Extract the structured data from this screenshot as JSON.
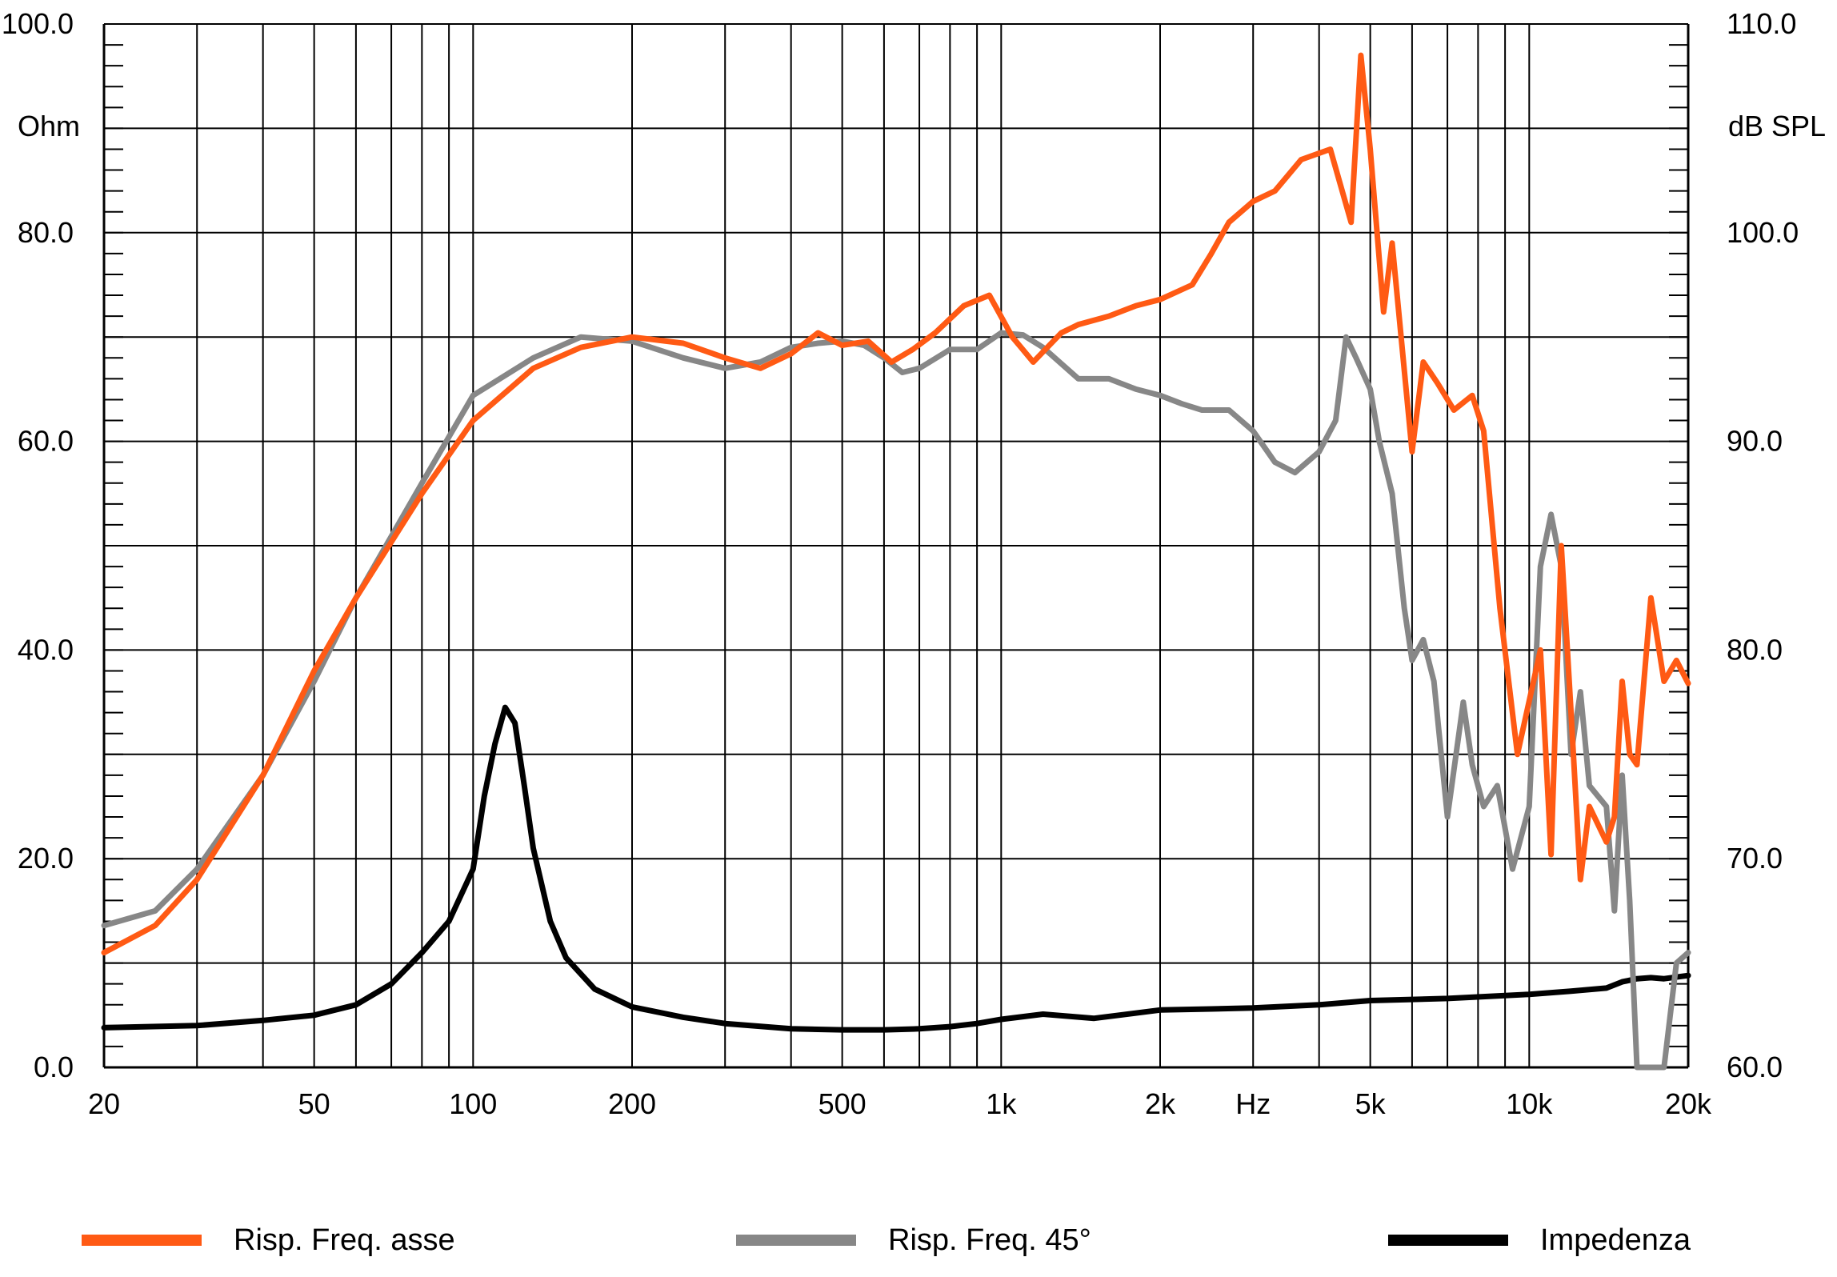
{
  "chart_data": {
    "type": "line",
    "x_scale": "log",
    "xlim": [
      20,
      20000
    ],
    "x_ticks": [
      20,
      50,
      100,
      200,
      500,
      1000,
      2000,
      3000,
      5000,
      10000,
      20000
    ],
    "x_tick_labels": [
      "20",
      "50",
      "100",
      "200",
      "500",
      "1k",
      "2k",
      "Hz",
      "5k",
      "10k",
      "20k"
    ],
    "y_left": {
      "label": "Ohm",
      "ylim": [
        0,
        100
      ],
      "ticks": [
        0,
        20,
        40,
        60,
        80,
        100
      ],
      "tick_labels": [
        "0.0",
        "20.0",
        "40.0",
        "60.0",
        "80.0",
        "100.0"
      ]
    },
    "y_right": {
      "label": "dB SPL",
      "ylim": [
        60,
        110
      ],
      "ticks": [
        60,
        70,
        80,
        90,
        100,
        110
      ],
      "tick_labels": [
        "60.0",
        "70.0",
        "80.0",
        "90.0",
        "100.0",
        "110.0"
      ]
    },
    "grid": true,
    "legend_position": "bottom",
    "series": [
      {
        "name": "Risp. Freq. asse",
        "color": "#ff5a14",
        "axis": "right",
        "x": [
          20,
          25,
          30,
          40,
          50,
          60,
          80,
          100,
          130,
          160,
          200,
          250,
          300,
          350,
          400,
          450,
          500,
          560,
          620,
          680,
          750,
          850,
          950,
          1050,
          1150,
          1300,
          1400,
          1600,
          1800,
          2000,
          2300,
          2500,
          2700,
          3000,
          3300,
          3700,
          4200,
          4600,
          4800,
          5000,
          5300,
          5500,
          6000,
          6300,
          6700,
          7200,
          7800,
          8200,
          8800,
          9500,
          10500,
          11000,
          11500,
          12000,
          12500,
          13000,
          14000,
          14500,
          15000,
          15500,
          16000,
          17000,
          18000,
          19000,
          20000
        ],
        "y": [
          65.5,
          66.8,
          69,
          74,
          79,
          82.5,
          87.5,
          91,
          93.5,
          94.5,
          95,
          94.7,
          94,
          93.5,
          94.2,
          95.2,
          94.6,
          94.8,
          93.8,
          94.4,
          95.2,
          96.5,
          97,
          95,
          93.8,
          95.2,
          95.6,
          96,
          96.5,
          96.8,
          97.5,
          99,
          100.5,
          101.5,
          102,
          103.5,
          104,
          100.5,
          108.5,
          104,
          96.2,
          99.5,
          89.5,
          93.8,
          92.8,
          91.5,
          92.2,
          90.5,
          82,
          75,
          80,
          70.2,
          85,
          77,
          69,
          72.5,
          70.8,
          72,
          78.5,
          75,
          74.5,
          82.5,
          78.5,
          79.5,
          78.4
        ]
      },
      {
        "name": "Risp. Freq. 45°",
        "color": "#878787",
        "axis": "right",
        "x": [
          20,
          25,
          30,
          40,
          50,
          60,
          80,
          100,
          130,
          160,
          200,
          250,
          300,
          350,
          400,
          450,
          500,
          550,
          600,
          650,
          700,
          800,
          900,
          1000,
          1100,
          1200,
          1400,
          1600,
          1800,
          2000,
          2200,
          2400,
          2700,
          3000,
          3300,
          3600,
          4000,
          4300,
          4500,
          4700,
          5000,
          5200,
          5500,
          5800,
          6000,
          6300,
          6600,
          7000,
          7500,
          7800,
          8200,
          8700,
          9300,
          10000,
          10500,
          11000,
          11500,
          12000,
          12500,
          13000,
          14000,
          14500,
          15000,
          15500,
          16000,
          17000,
          18000,
          19000,
          20000
        ],
        "y": [
          66.8,
          67.5,
          69.5,
          74,
          78.5,
          82.5,
          88,
          92.2,
          94,
          95,
          94.8,
          94,
          93.5,
          93.8,
          94.5,
          94.7,
          94.8,
          94.6,
          94,
          93.3,
          93.5,
          94.4,
          94.4,
          95.2,
          95.1,
          94.5,
          93,
          93,
          92.5,
          92.2,
          91.8,
          91.5,
          91.5,
          90.5,
          89,
          88.5,
          89.5,
          91,
          95,
          94,
          92.5,
          90,
          87.5,
          82,
          79.5,
          80.5,
          78.5,
          72,
          77.5,
          74.5,
          72.5,
          73.5,
          69.5,
          72.5,
          84,
          86.5,
          84,
          75,
          78,
          73.5,
          72.5,
          67.5,
          74,
          68,
          60,
          60,
          60,
          65,
          65.5
        ]
      },
      {
        "name": "Impedenza",
        "color": "#000000",
        "axis": "left",
        "x": [
          20,
          30,
          40,
          50,
          60,
          70,
          80,
          90,
          100,
          105,
          110,
          115,
          120,
          125,
          130,
          140,
          150,
          170,
          200,
          250,
          300,
          400,
          500,
          600,
          700,
          800,
          900,
          1000,
          1200,
          1500,
          2000,
          2500,
          3000,
          4000,
          5000,
          7000,
          10000,
          12000,
          14000,
          15000,
          16000,
          17000,
          18000,
          20000
        ],
        "y": [
          3.8,
          4.0,
          4.5,
          5.0,
          6.0,
          8.0,
          11.0,
          14.0,
          19.0,
          26.0,
          31.0,
          34.5,
          33.0,
          27.0,
          21.0,
          14.0,
          10.5,
          7.5,
          5.8,
          4.8,
          4.2,
          3.7,
          3.6,
          3.6,
          3.7,
          3.9,
          4.2,
          4.6,
          5.1,
          4.7,
          5.5,
          5.6,
          5.7,
          6.0,
          6.4,
          6.6,
          7.0,
          7.3,
          7.6,
          8.2,
          8.5,
          8.6,
          8.5,
          8.8
        ]
      }
    ]
  },
  "legend": [
    {
      "label": "Risp. Freq. asse",
      "color": "#ff5a14"
    },
    {
      "label": "Risp. Freq. 45°",
      "color": "#878787"
    },
    {
      "label": "Impedenza",
      "color": "#000000"
    }
  ]
}
